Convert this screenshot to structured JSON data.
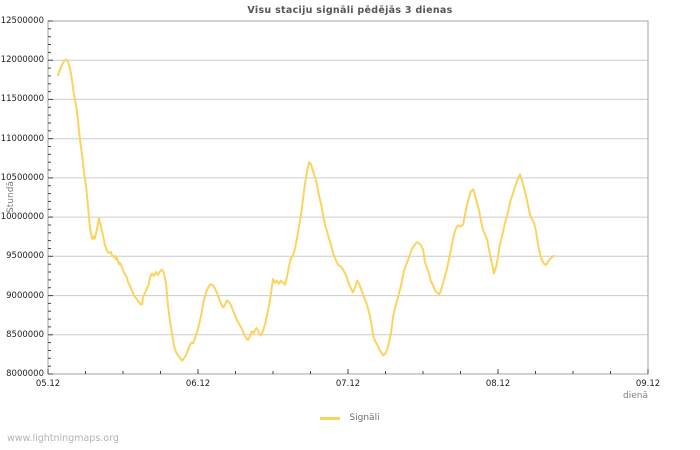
{
  "page": {
    "watermark": "www.lightningmaps.org"
  },
  "chart_data": {
    "type": "line",
    "title": "Visu staciju signāli pēdējās 3 dienas",
    "xlabel": "dienā",
    "ylabel": "Stundā",
    "grid": true,
    "legend_position": "bottom-center",
    "xlim": [
      0,
      4
    ],
    "ylim": [
      8000000,
      12500000
    ],
    "y_tick_step": 500000,
    "y_minor_step": 100000,
    "x_minor_step": 0.25,
    "x_ticks": [
      {
        "value": 0,
        "label": "05.12"
      },
      {
        "value": 1,
        "label": "06.12"
      },
      {
        "value": 2,
        "label": "07.12"
      },
      {
        "value": 3,
        "label": "08.12"
      },
      {
        "value": 4,
        "label": "09.12"
      }
    ],
    "y_ticks": [
      {
        "value": 8000000,
        "label": "8000000"
      },
      {
        "value": 8500000,
        "label": "8500000"
      },
      {
        "value": 9000000,
        "label": "9000000"
      },
      {
        "value": 9500000,
        "label": "9500000"
      },
      {
        "value": 10000000,
        "label": "10000000"
      },
      {
        "value": 10500000,
        "label": "10500000"
      },
      {
        "value": 11000000,
        "label": "11000000"
      },
      {
        "value": 11500000,
        "label": "11500000"
      },
      {
        "value": 12000000,
        "label": "12000000"
      },
      {
        "value": 12500000,
        "label": "12500000"
      }
    ],
    "colors": {
      "grid": "#cccccc",
      "border": "#a3a3a3",
      "tick": "#444444"
    },
    "series": [
      {
        "name": "Signāli",
        "color": "#fad45f",
        "points": [
          [
            0.067,
            11810000
          ],
          [
            0.08,
            11880000
          ],
          [
            0.093,
            11940000
          ],
          [
            0.107,
            11985000
          ],
          [
            0.12,
            12010000
          ],
          [
            0.133,
            11985000
          ],
          [
            0.147,
            11900000
          ],
          [
            0.16,
            11745000
          ],
          [
            0.173,
            11555000
          ],
          [
            0.187,
            11430000
          ],
          [
            0.2,
            11235000
          ],
          [
            0.213,
            10980000
          ],
          [
            0.227,
            10790000
          ],
          [
            0.24,
            10570000
          ],
          [
            0.253,
            10405000
          ],
          [
            0.267,
            10125000
          ],
          [
            0.28,
            9855000
          ],
          [
            0.293,
            9740000
          ],
          [
            0.3,
            9715000
          ],
          [
            0.307,
            9755000
          ],
          [
            0.313,
            9730000
          ],
          [
            0.327,
            9855000
          ],
          [
            0.34,
            9985000
          ],
          [
            0.353,
            9885000
          ],
          [
            0.367,
            9765000
          ],
          [
            0.38,
            9640000
          ],
          [
            0.393,
            9575000
          ],
          [
            0.407,
            9540000
          ],
          [
            0.42,
            9555000
          ],
          [
            0.427,
            9515000
          ],
          [
            0.44,
            9490000
          ],
          [
            0.447,
            9505000
          ],
          [
            0.453,
            9460000
          ],
          [
            0.46,
            9480000
          ],
          [
            0.473,
            9400000
          ],
          [
            0.48,
            9415000
          ],
          [
            0.493,
            9360000
          ],
          [
            0.5,
            9320000
          ],
          [
            0.513,
            9270000
          ],
          [
            0.527,
            9230000
          ],
          [
            0.533,
            9170000
          ],
          [
            0.547,
            9120000
          ],
          [
            0.56,
            9065000
          ],
          [
            0.573,
            9000000
          ],
          [
            0.587,
            8965000
          ],
          [
            0.6,
            8935000
          ],
          [
            0.613,
            8895000
          ],
          [
            0.627,
            8885000
          ],
          [
            0.633,
            8975000
          ],
          [
            0.647,
            9040000
          ],
          [
            0.66,
            9090000
          ],
          [
            0.673,
            9150000
          ],
          [
            0.68,
            9230000
          ],
          [
            0.693,
            9280000
          ],
          [
            0.707,
            9250000
          ],
          [
            0.72,
            9300000
          ],
          [
            0.733,
            9265000
          ],
          [
            0.747,
            9310000
          ],
          [
            0.76,
            9330000
          ],
          [
            0.773,
            9290000
          ],
          [
            0.787,
            9150000
          ],
          [
            0.793,
            9030000
          ],
          [
            0.8,
            8870000
          ],
          [
            0.813,
            8685000
          ],
          [
            0.827,
            8510000
          ],
          [
            0.84,
            8365000
          ],
          [
            0.853,
            8280000
          ],
          [
            0.867,
            8235000
          ],
          [
            0.88,
            8210000
          ],
          [
            0.893,
            8170000
          ],
          [
            0.907,
            8200000
          ],
          [
            0.92,
            8245000
          ],
          [
            0.933,
            8305000
          ],
          [
            0.947,
            8375000
          ],
          [
            0.96,
            8400000
          ],
          [
            0.967,
            8390000
          ],
          [
            0.98,
            8455000
          ],
          [
            0.993,
            8530000
          ],
          [
            1.007,
            8625000
          ],
          [
            1.02,
            8740000
          ],
          [
            1.033,
            8880000
          ],
          [
            1.047,
            9000000
          ],
          [
            1.06,
            9070000
          ],
          [
            1.073,
            9120000
          ],
          [
            1.087,
            9145000
          ],
          [
            1.1,
            9130000
          ],
          [
            1.113,
            9090000
          ],
          [
            1.127,
            9030000
          ],
          [
            1.14,
            8965000
          ],
          [
            1.153,
            8895000
          ],
          [
            1.167,
            8850000
          ],
          [
            1.18,
            8880000
          ],
          [
            1.193,
            8940000
          ],
          [
            1.207,
            8915000
          ],
          [
            1.22,
            8875000
          ],
          [
            1.233,
            8810000
          ],
          [
            1.247,
            8745000
          ],
          [
            1.26,
            8685000
          ],
          [
            1.273,
            8645000
          ],
          [
            1.287,
            8595000
          ],
          [
            1.3,
            8540000
          ],
          [
            1.313,
            8480000
          ],
          [
            1.327,
            8445000
          ],
          [
            1.333,
            8435000
          ],
          [
            1.347,
            8480000
          ],
          [
            1.36,
            8545000
          ],
          [
            1.373,
            8520000
          ],
          [
            1.38,
            8560000
          ],
          [
            1.393,
            8585000
          ],
          [
            1.407,
            8515000
          ],
          [
            1.42,
            8490000
          ],
          [
            1.433,
            8545000
          ],
          [
            1.447,
            8640000
          ],
          [
            1.46,
            8750000
          ],
          [
            1.473,
            8870000
          ],
          [
            1.487,
            9040000
          ],
          [
            1.5,
            9210000
          ],
          [
            1.513,
            9165000
          ],
          [
            1.527,
            9190000
          ],
          [
            1.54,
            9150000
          ],
          [
            1.553,
            9190000
          ],
          [
            1.567,
            9165000
          ],
          [
            1.58,
            9140000
          ],
          [
            1.593,
            9230000
          ],
          [
            1.607,
            9380000
          ],
          [
            1.62,
            9480000
          ],
          [
            1.633,
            9505000
          ],
          [
            1.647,
            9605000
          ],
          [
            1.66,
            9730000
          ],
          [
            1.673,
            9880000
          ],
          [
            1.687,
            10045000
          ],
          [
            1.7,
            10230000
          ],
          [
            1.713,
            10420000
          ],
          [
            1.727,
            10585000
          ],
          [
            1.74,
            10700000
          ],
          [
            1.753,
            10675000
          ],
          [
            1.767,
            10585000
          ],
          [
            1.78,
            10510000
          ],
          [
            1.793,
            10420000
          ],
          [
            1.807,
            10270000
          ],
          [
            1.82,
            10170000
          ],
          [
            1.833,
            10045000
          ],
          [
            1.847,
            9895000
          ],
          [
            1.86,
            9820000
          ],
          [
            1.873,
            9730000
          ],
          [
            1.887,
            9640000
          ],
          [
            1.9,
            9540000
          ],
          [
            1.913,
            9480000
          ],
          [
            1.927,
            9415000
          ],
          [
            1.94,
            9380000
          ],
          [
            1.953,
            9370000
          ],
          [
            1.967,
            9330000
          ],
          [
            1.98,
            9280000
          ],
          [
            1.993,
            9230000
          ],
          [
            2.007,
            9140000
          ],
          [
            2.02,
            9090000
          ],
          [
            2.033,
            9040000
          ],
          [
            2.047,
            9105000
          ],
          [
            2.06,
            9190000
          ],
          [
            2.073,
            9155000
          ],
          [
            2.087,
            9080000
          ],
          [
            2.1,
            9015000
          ],
          [
            2.113,
            8950000
          ],
          [
            2.127,
            8885000
          ],
          [
            2.14,
            8785000
          ],
          [
            2.153,
            8685000
          ],
          [
            2.167,
            8495000
          ],
          [
            2.18,
            8420000
          ],
          [
            2.193,
            8385000
          ],
          [
            2.207,
            8320000
          ],
          [
            2.22,
            8280000
          ],
          [
            2.233,
            8240000
          ],
          [
            2.247,
            8255000
          ],
          [
            2.26,
            8305000
          ],
          [
            2.273,
            8405000
          ],
          [
            2.287,
            8530000
          ],
          [
            2.3,
            8720000
          ],
          [
            2.313,
            8845000
          ],
          [
            2.327,
            8935000
          ],
          [
            2.34,
            9035000
          ],
          [
            2.353,
            9125000
          ],
          [
            2.367,
            9265000
          ],
          [
            2.38,
            9355000
          ],
          [
            2.393,
            9415000
          ],
          [
            2.407,
            9490000
          ],
          [
            2.42,
            9565000
          ],
          [
            2.433,
            9615000
          ],
          [
            2.447,
            9655000
          ],
          [
            2.46,
            9680000
          ],
          [
            2.473,
            9665000
          ],
          [
            2.487,
            9640000
          ],
          [
            2.5,
            9590000
          ],
          [
            2.513,
            9430000
          ],
          [
            2.527,
            9345000
          ],
          [
            2.54,
            9280000
          ],
          [
            2.553,
            9180000
          ],
          [
            2.567,
            9130000
          ],
          [
            2.58,
            9065000
          ],
          [
            2.593,
            9040000
          ],
          [
            2.607,
            9015000
          ],
          [
            2.62,
            9065000
          ],
          [
            2.633,
            9155000
          ],
          [
            2.647,
            9245000
          ],
          [
            2.66,
            9345000
          ],
          [
            2.673,
            9455000
          ],
          [
            2.687,
            9590000
          ],
          [
            2.7,
            9720000
          ],
          [
            2.713,
            9820000
          ],
          [
            2.727,
            9880000
          ],
          [
            2.74,
            9895000
          ],
          [
            2.753,
            9880000
          ],
          [
            2.767,
            9905000
          ],
          [
            2.78,
            10030000
          ],
          [
            2.793,
            10155000
          ],
          [
            2.807,
            10255000
          ],
          [
            2.82,
            10330000
          ],
          [
            2.833,
            10355000
          ],
          [
            2.847,
            10280000
          ],
          [
            2.86,
            10180000
          ],
          [
            2.873,
            10090000
          ],
          [
            2.887,
            9940000
          ],
          [
            2.9,
            9840000
          ],
          [
            2.913,
            9780000
          ],
          [
            2.927,
            9715000
          ],
          [
            2.94,
            9590000
          ],
          [
            2.953,
            9465000
          ],
          [
            2.967,
            9340000
          ],
          [
            2.973,
            9280000
          ],
          [
            2.987,
            9365000
          ],
          [
            3.0,
            9490000
          ],
          [
            3.013,
            9655000
          ],
          [
            3.027,
            9755000
          ],
          [
            3.04,
            9870000
          ],
          [
            3.053,
            9970000
          ],
          [
            3.067,
            10070000
          ],
          [
            3.08,
            10185000
          ],
          [
            3.093,
            10260000
          ],
          [
            3.107,
            10345000
          ],
          [
            3.12,
            10420000
          ],
          [
            3.133,
            10495000
          ],
          [
            3.147,
            10545000
          ],
          [
            3.16,
            10470000
          ],
          [
            3.173,
            10370000
          ],
          [
            3.187,
            10270000
          ],
          [
            3.2,
            10155000
          ],
          [
            3.213,
            10030000
          ],
          [
            3.227,
            9970000
          ],
          [
            3.24,
            9930000
          ],
          [
            3.253,
            9820000
          ],
          [
            3.267,
            9655000
          ],
          [
            3.28,
            9530000
          ],
          [
            3.293,
            9445000
          ],
          [
            3.307,
            9405000
          ],
          [
            3.32,
            9390000
          ],
          [
            3.333,
            9430000
          ],
          [
            3.347,
            9465000
          ],
          [
            3.36,
            9490000
          ],
          [
            3.373,
            9505000
          ]
        ]
      }
    ]
  }
}
